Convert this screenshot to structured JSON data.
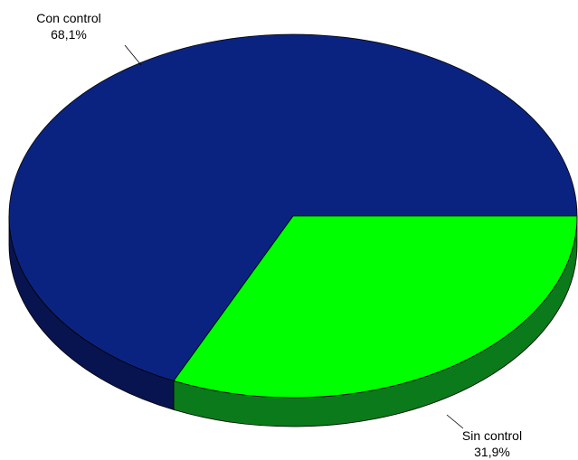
{
  "chart_data": {
    "type": "pie",
    "three_d": true,
    "slices": [
      {
        "label": "Con control",
        "value": 68.1,
        "value_label": "68,1%",
        "color": "#0B2380",
        "side_color": "#07144F"
      },
      {
        "label": "Sin control",
        "value": 31.9,
        "value_label": "31,9%",
        "color": "#00FF00",
        "side_color": "#0B7A1A"
      }
    ]
  }
}
